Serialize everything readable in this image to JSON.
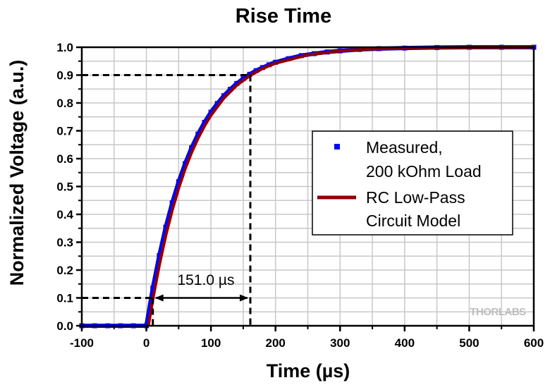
{
  "chart_data": {
    "type": "line",
    "title": "Rise Time",
    "xlabel": "Time (µs)",
    "ylabel": "Normalized Voltage (a.u.)",
    "xlim": [
      -100,
      600
    ],
    "ylim": [
      0.0,
      1.0
    ],
    "xticks": [
      "-100",
      "0",
      "100",
      "200",
      "300",
      "400",
      "500",
      "600"
    ],
    "yticks": [
      "0.0",
      "0.1",
      "0.2",
      "0.3",
      "0.4",
      "0.5",
      "0.6",
      "0.7",
      "0.8",
      "0.9",
      "1.0"
    ],
    "grid": true,
    "legend_position": "right",
    "series": [
      {
        "name": "Measured, 200 kOhm Load",
        "legend_lines": [
          "Measured,",
          "200 kOhm Load"
        ],
        "style": "square-markers",
        "color": "#0000ff",
        "x": [
          -100,
          -80,
          -60,
          -40,
          -20,
          0,
          10,
          20,
          30,
          40,
          50,
          60,
          70,
          80,
          90,
          100,
          110,
          120,
          130,
          140,
          150,
          160,
          170,
          180,
          190,
          200,
          220,
          240,
          260,
          280,
          300,
          330,
          360,
          400,
          450,
          500,
          550,
          600
        ],
        "y": [
          0,
          0,
          0,
          0,
          0,
          0,
          0.135,
          0.252,
          0.354,
          0.441,
          0.517,
          0.582,
          0.639,
          0.688,
          0.73,
          0.767,
          0.798,
          0.826,
          0.849,
          0.87,
          0.887,
          0.903,
          0.916,
          0.927,
          0.937,
          0.946,
          0.959,
          0.97,
          0.977,
          0.983,
          0.987,
          0.992,
          0.995,
          0.997,
          0.999,
          1.0,
          1.0,
          1.0
        ]
      },
      {
        "name": "RC Low-Pass Circuit Model",
        "legend_lines": [
          "RC Low-Pass",
          "Circuit Model"
        ],
        "style": "line",
        "color": "#8b0000",
        "x": [
          3,
          10,
          20,
          30,
          40,
          50,
          60,
          70,
          80,
          90,
          100,
          120,
          140,
          160,
          180,
          200,
          250,
          300,
          350,
          400,
          500,
          600
        ],
        "y": [
          0,
          0.097,
          0.219,
          0.325,
          0.416,
          0.495,
          0.564,
          0.623,
          0.674,
          0.718,
          0.756,
          0.818,
          0.864,
          0.898,
          0.924,
          0.943,
          0.973,
          0.987,
          0.994,
          0.997,
          0.999,
          1.0
        ]
      }
    ],
    "annotations": {
      "rise_time_label": "151.0 µs",
      "t10": 10,
      "t90": 161,
      "level_low": 0.1,
      "level_high": 0.9
    },
    "watermark": "THORLABS"
  }
}
